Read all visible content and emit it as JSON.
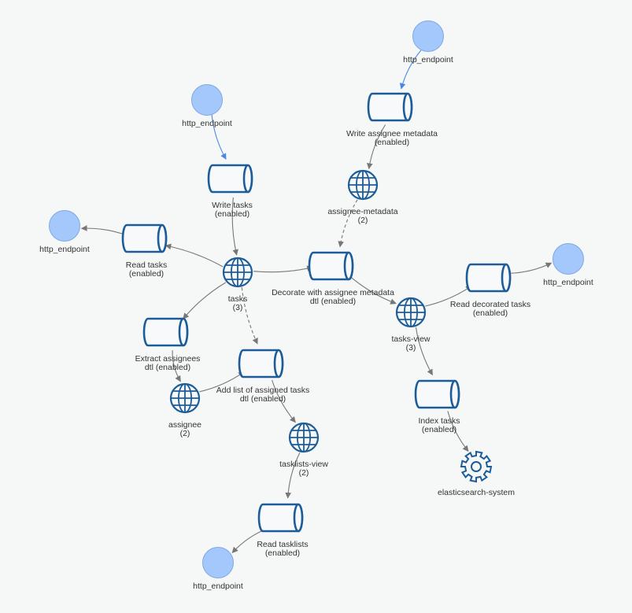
{
  "nodes": [
    {
      "id": "ep_top_right_upper",
      "kind": "endpoint",
      "label": "http_endpoint"
    },
    {
      "id": "write_assignee_metadata",
      "kind": "topic",
      "label": "Write assignee metadata",
      "status": "(enabled)"
    },
    {
      "id": "ep_write_tasks",
      "kind": "endpoint",
      "label": "http_endpoint"
    },
    {
      "id": "assignee_metadata",
      "kind": "stream",
      "label": "assignee-metadata",
      "count": "(2)"
    },
    {
      "id": "write_tasks",
      "kind": "topic",
      "label": "Write tasks",
      "status": "(enabled)"
    },
    {
      "id": "ep_read_tasks",
      "kind": "endpoint",
      "label": "http_endpoint"
    },
    {
      "id": "read_tasks",
      "kind": "topic",
      "label": "Read tasks",
      "status": "(enabled)"
    },
    {
      "id": "tasks",
      "kind": "stream",
      "label": "tasks",
      "count": "(3)"
    },
    {
      "id": "decorate",
      "kind": "topic",
      "label": "Decorate with assignee metadata",
      "status": "dtl (enabled)"
    },
    {
      "id": "ep_read_decorated",
      "kind": "endpoint",
      "label": "http_endpoint"
    },
    {
      "id": "read_decorated",
      "kind": "topic",
      "label": "Read decorated tasks",
      "status": "(enabled)"
    },
    {
      "id": "tasks_view",
      "kind": "stream",
      "label": "tasks-view",
      "count": "(3)"
    },
    {
      "id": "extract_assignees",
      "kind": "topic",
      "label": "Extract assignees",
      "status": "dtl (enabled)"
    },
    {
      "id": "add_list",
      "kind": "topic",
      "label": "Add list of assigned tasks",
      "status": "dtl (enabled)"
    },
    {
      "id": "assignee",
      "kind": "stream",
      "label": "assignee",
      "count": "(2)"
    },
    {
      "id": "index_tasks",
      "kind": "topic",
      "label": "Index tasks",
      "status": "(enabled)"
    },
    {
      "id": "tasklists_view",
      "kind": "stream",
      "label": "tasklists-view",
      "count": "(2)"
    },
    {
      "id": "elasticsearch_system",
      "kind": "system",
      "label": "elasticsearch-system"
    },
    {
      "id": "read_tasklists",
      "kind": "topic",
      "label": "Read tasklists",
      "status": "(enabled)"
    },
    {
      "id": "ep_read_tasklists",
      "kind": "endpoint",
      "label": "http_endpoint"
    }
  ],
  "edges": [
    {
      "from": "ep_top_right_upper",
      "to": "write_assignee_metadata",
      "style": "blue"
    },
    {
      "from": "write_assignee_metadata",
      "to": "assignee_metadata",
      "style": "solid"
    },
    {
      "from": "assignee_metadata",
      "to": "decorate",
      "style": "dashed"
    },
    {
      "from": "ep_write_tasks",
      "to": "write_tasks",
      "style": "blue"
    },
    {
      "from": "write_tasks",
      "to": "tasks",
      "style": "solid"
    },
    {
      "from": "tasks",
      "to": "read_tasks",
      "style": "solid"
    },
    {
      "from": "read_tasks",
      "to": "ep_read_tasks",
      "style": "solid"
    },
    {
      "from": "tasks",
      "to": "decorate",
      "style": "solid"
    },
    {
      "from": "decorate",
      "to": "tasks_view",
      "style": "solid"
    },
    {
      "from": "tasks_view",
      "to": "read_decorated",
      "style": "solid"
    },
    {
      "from": "read_decorated",
      "to": "ep_read_decorated",
      "style": "solid"
    },
    {
      "from": "tasks_view",
      "to": "index_tasks",
      "style": "solid"
    },
    {
      "from": "index_tasks",
      "to": "elasticsearch_system",
      "style": "solid"
    },
    {
      "from": "tasks",
      "to": "extract_assignees",
      "style": "solid"
    },
    {
      "from": "extract_assignees",
      "to": "assignee",
      "style": "solid"
    },
    {
      "from": "assignee",
      "to": "add_list",
      "style": "solid"
    },
    {
      "from": "tasks",
      "to": "add_list",
      "style": "dashed"
    },
    {
      "from": "add_list",
      "to": "tasklists_view",
      "style": "solid"
    },
    {
      "from": "tasklists_view",
      "to": "read_tasklists",
      "style": "solid"
    },
    {
      "from": "read_tasklists",
      "to": "ep_read_tasklists",
      "style": "solid"
    }
  ],
  "colors": {
    "endpoint_fill": "#a4c8fc",
    "node_stroke": "#1c5d99",
    "edge": "#777777",
    "edge_blue": "#4a86e8",
    "background": "#f6f7f7"
  }
}
